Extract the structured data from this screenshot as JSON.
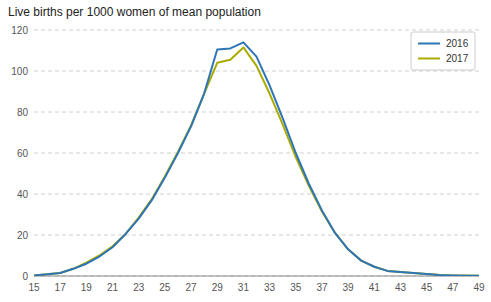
{
  "chart_data": {
    "type": "line",
    "title": "Live births per 1000 women of mean population",
    "x": [
      15,
      16,
      17,
      18,
      19,
      20,
      21,
      22,
      23,
      24,
      25,
      26,
      27,
      28,
      29,
      30,
      31,
      32,
      33,
      34,
      35,
      36,
      37,
      38,
      39,
      40,
      41,
      42,
      43,
      44,
      45,
      46,
      47,
      48,
      49
    ],
    "series": [
      {
        "name": "2016",
        "color": "#2E75B6",
        "values": [
          0.3,
          0.8,
          1.5,
          3.5,
          6.0,
          9.5,
          14.0,
          20.5,
          28.0,
          37.0,
          48.0,
          60.0,
          73.0,
          89.0,
          110.5,
          111.0,
          114.0,
          107.0,
          93.0,
          77.0,
          60.0,
          45.0,
          32.0,
          21.0,
          13.0,
          7.5,
          4.5,
          2.5,
          2.0,
          1.5,
          1.0,
          0.5,
          0.3,
          0.1,
          0.1
        ]
      },
      {
        "name": "2017",
        "color": "#AAAA00",
        "values": [
          0.3,
          0.8,
          1.5,
          3.5,
          6.5,
          10.0,
          14.5,
          20.5,
          28.5,
          37.5,
          48.5,
          60.5,
          73.5,
          89.0,
          104.0,
          105.5,
          111.5,
          102.5,
          89.0,
          74.0,
          58.0,
          44.0,
          31.5,
          21.0,
          13.0,
          7.5,
          4.5,
          2.5,
          2.0,
          1.5,
          1.0,
          0.5,
          0.3,
          0.2,
          0.1
        ]
      }
    ],
    "xlim": [
      15,
      49
    ],
    "xticks": [
      15,
      17,
      19,
      21,
      23,
      25,
      27,
      29,
      31,
      33,
      35,
      37,
      39,
      41,
      43,
      45,
      47,
      49
    ],
    "ylim": [
      0,
      120
    ],
    "yticks": [
      0,
      20,
      40,
      60,
      80,
      100,
      120
    ],
    "grid": true,
    "legend": "top-right"
  }
}
